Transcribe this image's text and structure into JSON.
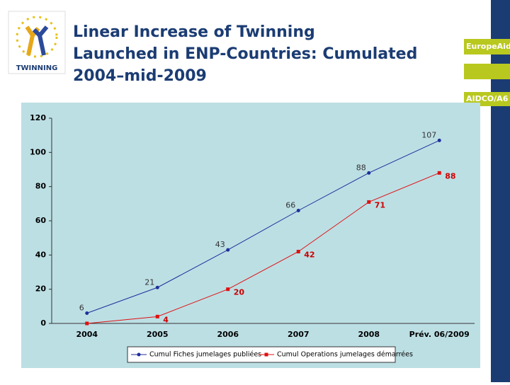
{
  "logo": {
    "text": "TWINNING"
  },
  "sidebar": {
    "labels": [
      "EuropeAid",
      "AIDCO/A6"
    ]
  },
  "chart_data": {
    "type": "line",
    "title": "Linear Increase of Twinning Launched in ENP-Countries: Cumulated 2004–mid-2009",
    "categories": [
      "2004",
      "2005",
      "2006",
      "2007",
      "2008",
      "Prév. 06/2009"
    ],
    "series": [
      {
        "name": "Cumul Fiches jumelages publiées",
        "color": "#1f2f9a",
        "label_color": "#333333",
        "values": [
          6,
          21,
          43,
          66,
          88,
          107
        ]
      },
      {
        "name": "Cumul Operations jumelages démarrées",
        "color": "#e01010",
        "label_color": "#cc0000",
        "values": [
          0,
          4,
          20,
          42,
          71,
          88
        ]
      }
    ],
    "ylim": [
      0,
      120
    ],
    "yticks": [
      0,
      20,
      40,
      60,
      80,
      100,
      120
    ],
    "grid": false,
    "legend": "bottom"
  }
}
